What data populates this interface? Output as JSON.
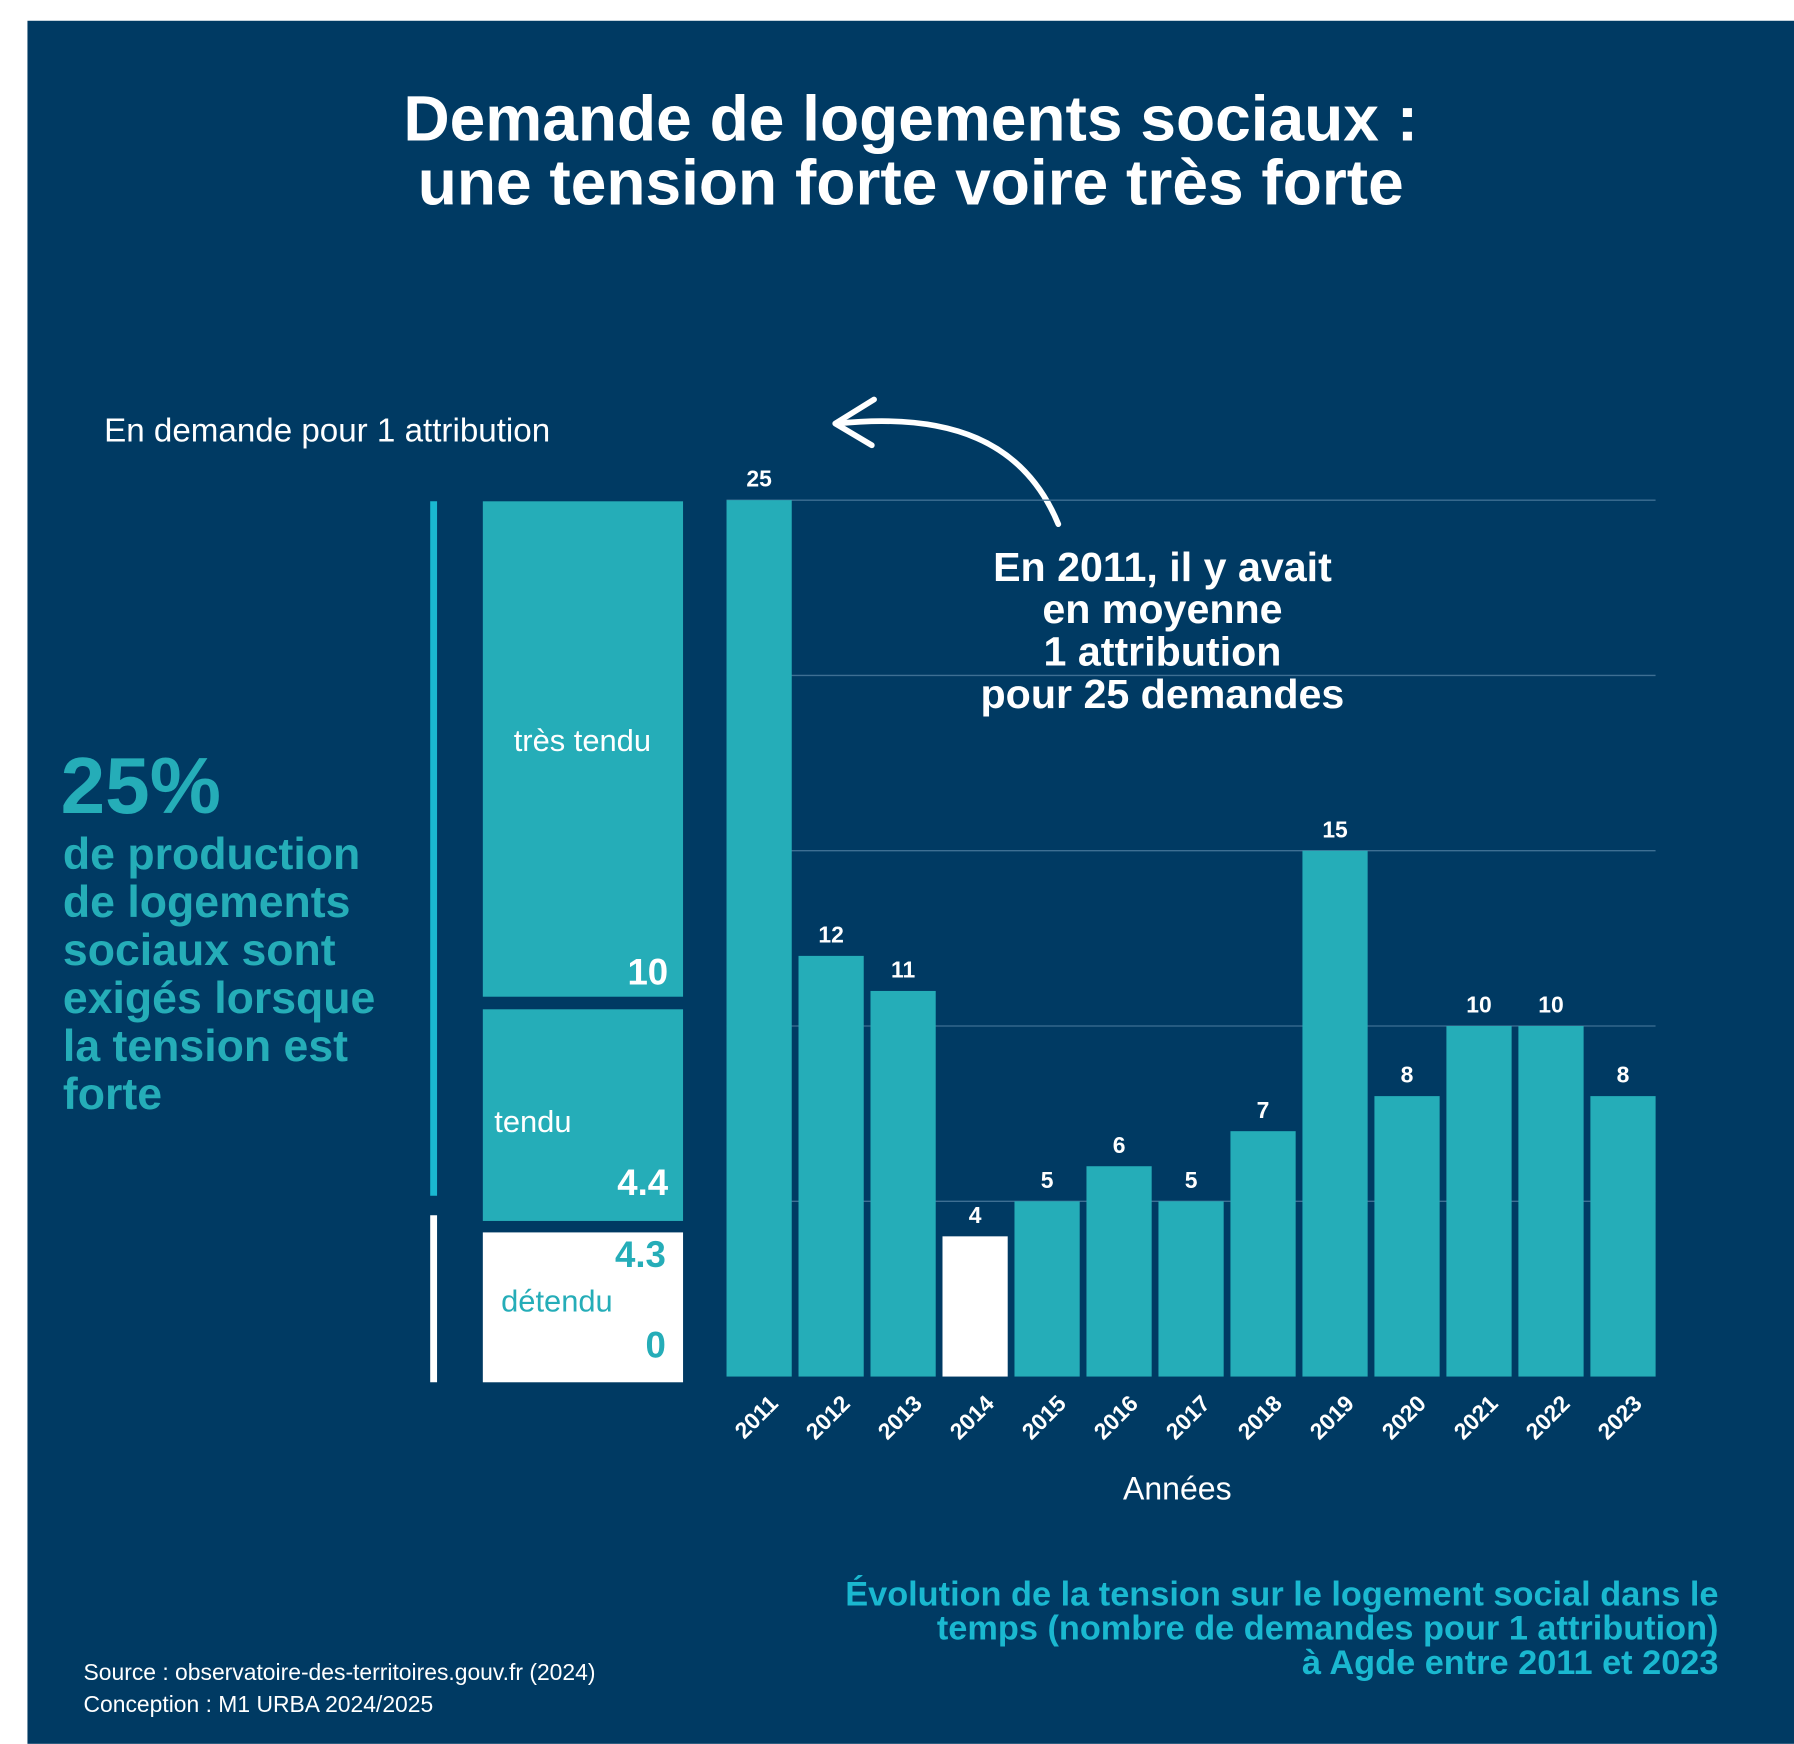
{
  "chart_data": {
    "type": "bar",
    "title": [
      "Demande de logements sociaux :",
      "une tension forte voire très forte"
    ],
    "y_axis_label": "En demande pour 1 attribution",
    "x_axis_label": "Années",
    "categories": [
      "2011",
      "2012",
      "2013",
      "2014",
      "2015",
      "2016",
      "2017",
      "2018",
      "2019",
      "2020",
      "2021",
      "2022",
      "2023"
    ],
    "values": [
      25,
      12,
      11,
      4,
      5,
      6,
      5,
      7,
      15,
      8,
      10,
      10,
      8
    ],
    "bar_colors": [
      "#25adb8",
      "#25adb8",
      "#25adb8",
      "#ffffff",
      "#25adb8",
      "#25adb8",
      "#25adb8",
      "#25adb8",
      "#25adb8",
      "#25adb8",
      "#25adb8",
      "#25adb8",
      "#25adb8"
    ],
    "ylim": [
      0,
      25
    ],
    "yticks": [
      5,
      10,
      15,
      20,
      25
    ],
    "grid": true,
    "annotation": [
      "En 2011, il y avait",
      "en moyenne",
      "1 attribution",
      "pour 25 demandes"
    ],
    "tension_scale": [
      {
        "label": "très tendu",
        "threshold": 10
      },
      {
        "label": "tendu",
        "threshold": 4.4
      },
      {
        "label": "détendu",
        "upper": 4.3,
        "threshold": 0
      }
    ],
    "side_note": {
      "headline": "25%",
      "lines": [
        "de production",
        "de logements",
        "sociaux sont",
        "exigés lorsque",
        "la tension est",
        "forte"
      ]
    },
    "caption": [
      "Évolution de la tension sur le logement social dans le",
      "temps (nombre de demandes pour 1 attribution)",
      "à Agde entre 2011 et 2023"
    ],
    "source": [
      "Source : observatoire-des-territoires.gouv.fr (2024)",
      "Conception : M1 URBA 2024/2025"
    ]
  }
}
